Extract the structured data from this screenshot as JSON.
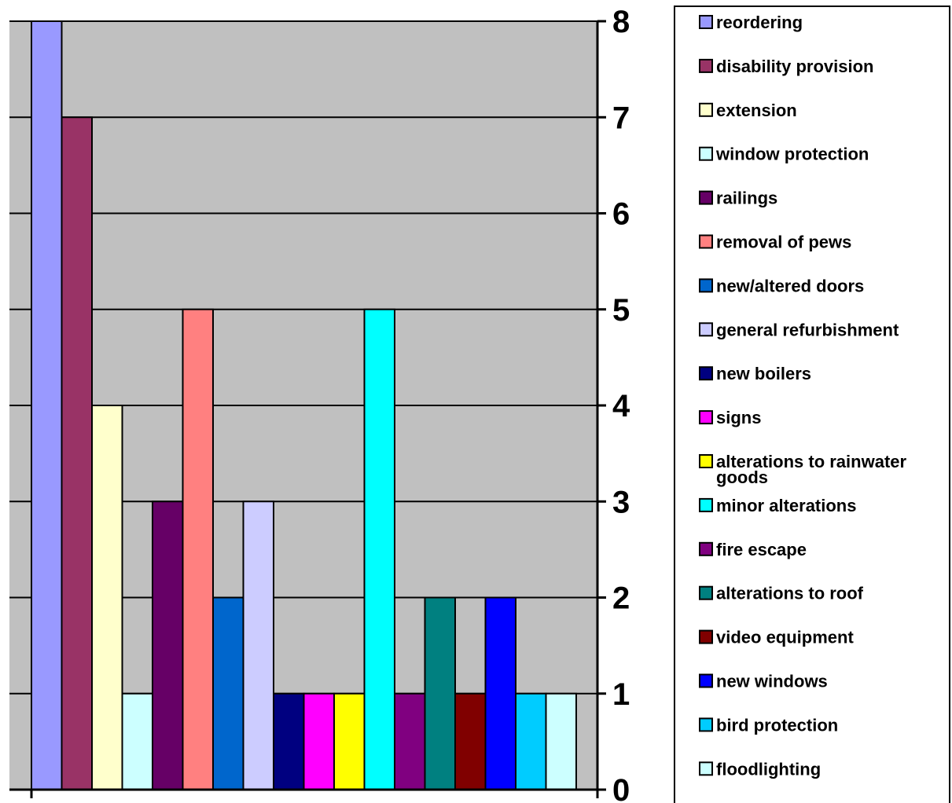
{
  "chart_data": {
    "type": "bar",
    "title": "",
    "xlabel": "",
    "ylabel": "",
    "ylim": [
      0,
      8
    ],
    "y_ticks": [
      "0",
      "1",
      "2",
      "3",
      "4",
      "5",
      "6",
      "7",
      "8"
    ],
    "y_axis_side": "right",
    "grid": true,
    "legend_position": "right",
    "plot_background": "#c0c0c0",
    "series": [
      {
        "name": "reordering",
        "value": 8,
        "color": "#9999ff"
      },
      {
        "name": "disability provision",
        "value": 7,
        "color": "#993366"
      },
      {
        "name": "extension",
        "value": 4,
        "color": "#ffffcc"
      },
      {
        "name": "window protection",
        "value": 1,
        "color": "#ccffff"
      },
      {
        "name": "railings",
        "value": 3,
        "color": "#660066"
      },
      {
        "name": "removal of pews",
        "value": 5,
        "color": "#ff8080"
      },
      {
        "name": "new/altered doors",
        "value": 2,
        "color": "#0066cc"
      },
      {
        "name": "general refurbishment",
        "value": 3,
        "color": "#ccccff"
      },
      {
        "name": "new boilers",
        "value": 1,
        "color": "#000080"
      },
      {
        "name": "signs",
        "value": 1,
        "color": "#ff00ff"
      },
      {
        "name": "alterations to rainwater goods",
        "value": 1,
        "color": "#ffff00"
      },
      {
        "name": "minor alterations",
        "value": 5,
        "color": "#00ffff"
      },
      {
        "name": "fire escape",
        "value": 1,
        "color": "#800080"
      },
      {
        "name": "alterations to roof",
        "value": 2,
        "color": "#008080"
      },
      {
        "name": "video equipment",
        "value": 1,
        "color": "#800000"
      },
      {
        "name": "new windows",
        "value": 2,
        "color": "#0000ff"
      },
      {
        "name": "bird protection",
        "value": 1,
        "color": "#00ccff"
      },
      {
        "name": "floodlighting",
        "value": 1,
        "color": "#ccffff"
      }
    ]
  }
}
